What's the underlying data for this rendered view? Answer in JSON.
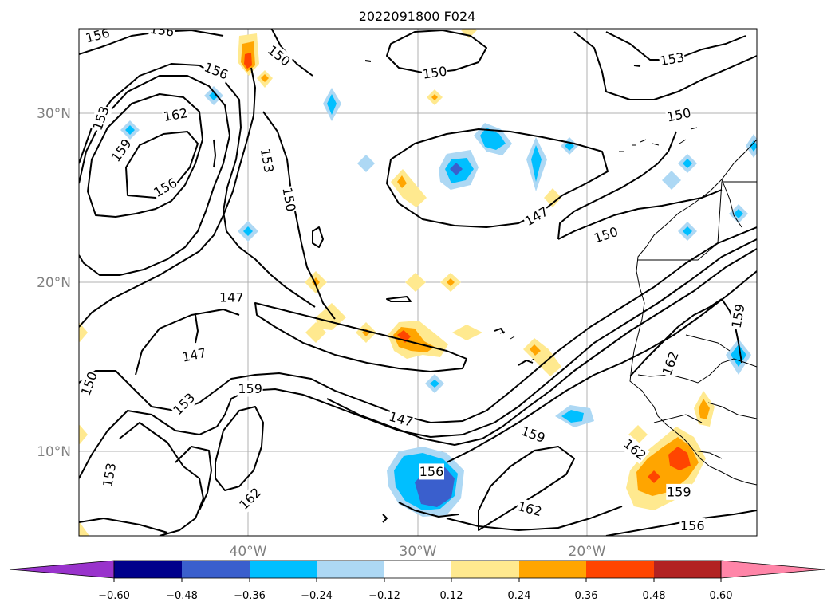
{
  "map": {
    "title": "2022091800 F024",
    "lat_labels": [
      "30°N",
      "20°N",
      "10°N"
    ],
    "lon_labels": [
      "40°W",
      "30°W",
      "20°W"
    ],
    "extent": {
      "lon_min": -50,
      "lon_max": -10,
      "lat_min": 5,
      "lat_max": 35
    },
    "grid": true,
    "contour_color": "#000000",
    "contour_labels": [
      {
        "text": "156",
        "lon": -48.9,
        "lat": 34.6,
        "rot": -15
      },
      {
        "text": "156",
        "lon": -45.1,
        "lat": 34.9,
        "rot": 8
      },
      {
        "text": "150",
        "lon": -38.2,
        "lat": 33.4,
        "rot": 38
      },
      {
        "text": "156",
        "lon": -41.9,
        "lat": 32.5,
        "rot": 22
      },
      {
        "text": "153",
        "lon": -48.7,
        "lat": 29.7,
        "rot": -70
      },
      {
        "text": "162",
        "lon": -44.3,
        "lat": 29.9,
        "rot": -10
      },
      {
        "text": "159",
        "lon": -47.5,
        "lat": 27.8,
        "rot": -55
      },
      {
        "text": "156",
        "lon": -44.9,
        "lat": 25.6,
        "rot": -30
      },
      {
        "text": "153",
        "lon": -38.9,
        "lat": 27.2,
        "rot": 80
      },
      {
        "text": "150",
        "lon": -37.6,
        "lat": 24.9,
        "rot": 80
      },
      {
        "text": "150",
        "lon": -29.0,
        "lat": 32.4,
        "rot": -8
      },
      {
        "text": "153",
        "lon": -15.0,
        "lat": 33.2,
        "rot": -10
      },
      {
        "text": "150",
        "lon": -14.6,
        "lat": 29.9,
        "rot": -12
      },
      {
        "text": "147",
        "lon": -23.0,
        "lat": 23.9,
        "rot": -30
      },
      {
        "text": "150",
        "lon": -18.9,
        "lat": 22.8,
        "rot": -18
      },
      {
        "text": "147",
        "lon": -41.0,
        "lat": 19.1,
        "rot": 0
      },
      {
        "text": "147",
        "lon": -43.2,
        "lat": 15.7,
        "rot": -12
      },
      {
        "text": "150",
        "lon": -49.4,
        "lat": 14.0,
        "rot": -70
      },
      {
        "text": "153",
        "lon": -43.8,
        "lat": 12.8,
        "rot": -45
      },
      {
        "text": "159",
        "lon": -39.9,
        "lat": 13.7,
        "rot": 0
      },
      {
        "text": "147",
        "lon": -31.0,
        "lat": 11.9,
        "rot": 15
      },
      {
        "text": "159",
        "lon": -23.2,
        "lat": 11.0,
        "rot": 20
      },
      {
        "text": "156",
        "lon": -29.2,
        "lat": 8.8,
        "rot": 0
      },
      {
        "text": "153",
        "lon": -48.2,
        "lat": 8.6,
        "rot": -80
      },
      {
        "text": "162",
        "lon": -39.9,
        "lat": 7.2,
        "rot": -45
      },
      {
        "text": "162",
        "lon": -23.4,
        "lat": 6.6,
        "rot": 15
      },
      {
        "text": "162",
        "lon": -17.2,
        "lat": 10.1,
        "rot": 40
      },
      {
        "text": "159",
        "lon": -14.6,
        "lat": 7.6,
        "rot": 0
      },
      {
        "text": "156",
        "lon": -13.8,
        "lat": 5.6,
        "rot": 0
      },
      {
        "text": "162",
        "lon": -15.1,
        "lat": 15.2,
        "rot": -70
      },
      {
        "text": "159",
        "lon": -11.1,
        "lat": 18.0,
        "rot": -80
      }
    ]
  },
  "colorbar": {
    "ticks": [
      "−0.60",
      "−0.48",
      "−0.36",
      "−0.24",
      "−0.12",
      "0.12",
      "0.24",
      "0.36",
      "0.48",
      "0.60"
    ],
    "colors": [
      "#9933cc",
      "#00008b",
      "#3a5fcd",
      "#00bfff",
      "#add8f4",
      "#ffffff",
      "#ffe98f",
      "#ffa500",
      "#ff4500",
      "#b22222",
      "#ff85a8"
    ]
  }
}
